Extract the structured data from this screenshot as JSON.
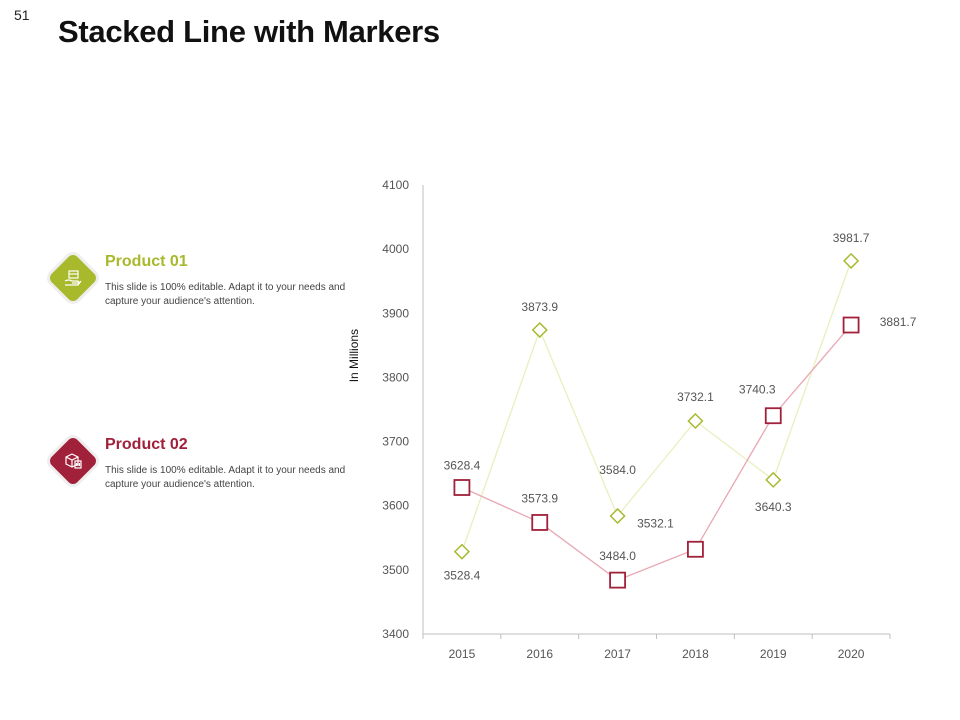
{
  "page_number": "51",
  "title": "Stacked Line with Markers",
  "products": [
    {
      "name": "Product 01",
      "description": "This slide is 100% editable. Adapt it to your needs and capture your audience's attention.",
      "color": "#a8b92c",
      "icon": "box-hand-icon"
    },
    {
      "name": "Product 02",
      "description": "This slide is 100% editable. Adapt it to your needs and capture your audience's attention.",
      "color": "#a1203a",
      "icon": "package-icon"
    }
  ],
  "chart_data": {
    "type": "line",
    "categories": [
      "2015",
      "2016",
      "2017",
      "2018",
      "2019",
      "2020"
    ],
    "ylabel": "In Millions",
    "ylim": [
      3400,
      4100
    ],
    "yticks": [
      3400,
      3500,
      3600,
      3700,
      3800,
      3900,
      4000,
      4100
    ],
    "grid": false,
    "series": [
      {
        "name": "Product 01",
        "marker": "diamond",
        "color": "#a8b92c",
        "values": [
          3528.4,
          3873.9,
          3584.0,
          3732.1,
          3640.3,
          3981.7
        ],
        "labels": [
          "3528.4",
          "3873.9",
          "3584.0",
          "3732.1",
          "3640.3",
          "3981.7"
        ]
      },
      {
        "name": "Product 02",
        "marker": "square",
        "color": "#a1203a",
        "values": [
          3628.4,
          3573.9,
          3484.0,
          3532.1,
          3740.3,
          3881.7
        ],
        "labels": [
          "3628.4",
          "3573.9",
          "3484.0",
          "3532.1",
          "3740.3",
          "3881.7"
        ]
      }
    ]
  }
}
